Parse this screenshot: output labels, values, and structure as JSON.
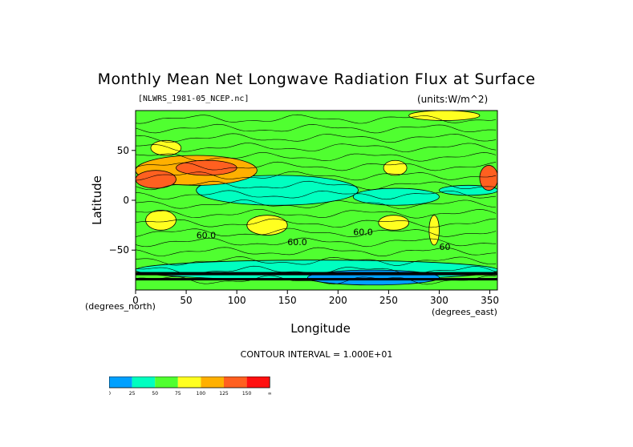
{
  "chart_data": {
    "type": "heatmap",
    "title": "Monthly Mean Net Longwave Radiation Flux at Surface",
    "file_label": "[NLWRS_1981-05_NCEP.nc]",
    "units_label": "(units:W/m^2)",
    "xlabel": "Longitude",
    "ylabel": "Latitude",
    "x_unit_label": "(degrees_east)",
    "y_unit_label": "(degrees_north)",
    "contour_interval_label": "CONTOUR INTERVAL = 1.000E+01",
    "xlim": [
      0,
      357.5
    ],
    "ylim": [
      -90,
      90
    ],
    "x_ticks": [
      0,
      50,
      100,
      150,
      200,
      250,
      300,
      350
    ],
    "y_ticks": [
      50,
      0,
      -50
    ],
    "contour_labels": [
      "60.0",
      "60.0",
      "60.0",
      "60"
    ],
    "colorbar": {
      "levels": [
        "0",
        "25",
        "50",
        "75",
        "100",
        "125",
        "150",
        "∞"
      ],
      "colors": [
        "#00a0ff",
        "#00ffc0",
        "#50ff30",
        "#ffff20",
        "#ffb000",
        "#ff6020",
        "#ff1010"
      ]
    },
    "regions": [
      {
        "lon": [
          0,
          360
        ],
        "lat": [
          -90,
          90
        ],
        "bin": 2
      },
      {
        "lon": [
          60,
          220
        ],
        "lat": [
          -5,
          25
        ],
        "bin": 1
      },
      {
        "lon": [
          215,
          300
        ],
        "lat": [
          -5,
          12
        ],
        "bin": 1
      },
      {
        "lon": [
          300,
          358
        ],
        "lat": [
          5,
          15
        ],
        "bin": 1
      },
      {
        "lon": [
          10,
          40
        ],
        "lat": [
          -30,
          -10
        ],
        "bin": 3
      },
      {
        "lon": [
          110,
          150
        ],
        "lat": [
          -35,
          -15
        ],
        "bin": 3
      },
      {
        "lon": [
          240,
          270
        ],
        "lat": [
          -30,
          -15
        ],
        "bin": 3
      },
      {
        "lon": [
          290,
          300
        ],
        "lat": [
          -45,
          -15
        ],
        "bin": 3
      },
      {
        "lon": [
          15,
          45
        ],
        "lat": [
          45,
          60
        ],
        "bin": 3
      },
      {
        "lon": [
          245,
          268
        ],
        "lat": [
          25,
          40
        ],
        "bin": 3
      },
      {
        "lon": [
          0,
          120
        ],
        "lat": [
          15,
          45
        ],
        "bin": 4
      },
      {
        "lon": [
          0,
          40
        ],
        "lat": [
          12,
          30
        ],
        "bin": 5
      },
      {
        "lon": [
          40,
          100
        ],
        "lat": [
          25,
          40
        ],
        "bin": 5
      },
      {
        "lon": [
          340,
          358
        ],
        "lat": [
          10,
          35
        ],
        "bin": 5
      },
      {
        "lon": [
          270,
          340
        ],
        "lat": [
          80,
          90
        ],
        "bin": 3
      },
      {
        "lon": [
          0,
          358
        ],
        "lat": [
          -80,
          -60
        ],
        "bin": 1
      },
      {
        "lon": [
          170,
          300
        ],
        "lat": [
          -85,
          -70
        ],
        "bin": 0
      }
    ]
  }
}
